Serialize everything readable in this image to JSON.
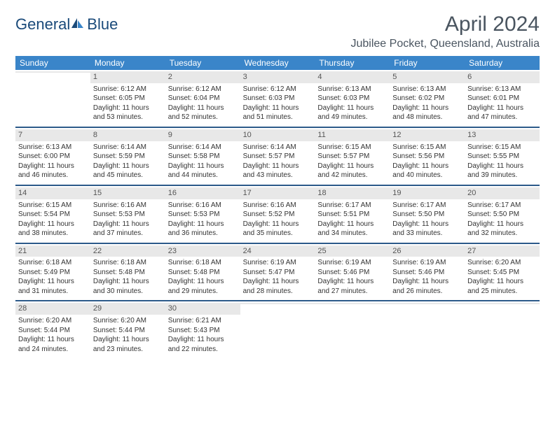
{
  "logo": {
    "text1": "General",
    "text2": "Blue"
  },
  "title": "April 2024",
  "location": "Jubilee Pocket, Queensland, Australia",
  "colors": {
    "header_bg": "#3a85c9",
    "week_divider": "#2c5a8a",
    "daynum_bg": "#e8e8e8",
    "text": "#333333",
    "title_color": "#4a5560"
  },
  "weekdays": [
    "Sunday",
    "Monday",
    "Tuesday",
    "Wednesday",
    "Thursday",
    "Friday",
    "Saturday"
  ],
  "weeks": [
    [
      {
        "num": "",
        "lines": []
      },
      {
        "num": "1",
        "lines": [
          "Sunrise: 6:12 AM",
          "Sunset: 6:05 PM",
          "Daylight: 11 hours",
          "and 53 minutes."
        ]
      },
      {
        "num": "2",
        "lines": [
          "Sunrise: 6:12 AM",
          "Sunset: 6:04 PM",
          "Daylight: 11 hours",
          "and 52 minutes."
        ]
      },
      {
        "num": "3",
        "lines": [
          "Sunrise: 6:12 AM",
          "Sunset: 6:03 PM",
          "Daylight: 11 hours",
          "and 51 minutes."
        ]
      },
      {
        "num": "4",
        "lines": [
          "Sunrise: 6:13 AM",
          "Sunset: 6:03 PM",
          "Daylight: 11 hours",
          "and 49 minutes."
        ]
      },
      {
        "num": "5",
        "lines": [
          "Sunrise: 6:13 AM",
          "Sunset: 6:02 PM",
          "Daylight: 11 hours",
          "and 48 minutes."
        ]
      },
      {
        "num": "6",
        "lines": [
          "Sunrise: 6:13 AM",
          "Sunset: 6:01 PM",
          "Daylight: 11 hours",
          "and 47 minutes."
        ]
      }
    ],
    [
      {
        "num": "7",
        "lines": [
          "Sunrise: 6:13 AM",
          "Sunset: 6:00 PM",
          "Daylight: 11 hours",
          "and 46 minutes."
        ]
      },
      {
        "num": "8",
        "lines": [
          "Sunrise: 6:14 AM",
          "Sunset: 5:59 PM",
          "Daylight: 11 hours",
          "and 45 minutes."
        ]
      },
      {
        "num": "9",
        "lines": [
          "Sunrise: 6:14 AM",
          "Sunset: 5:58 PM",
          "Daylight: 11 hours",
          "and 44 minutes."
        ]
      },
      {
        "num": "10",
        "lines": [
          "Sunrise: 6:14 AM",
          "Sunset: 5:57 PM",
          "Daylight: 11 hours",
          "and 43 minutes."
        ]
      },
      {
        "num": "11",
        "lines": [
          "Sunrise: 6:15 AM",
          "Sunset: 5:57 PM",
          "Daylight: 11 hours",
          "and 42 minutes."
        ]
      },
      {
        "num": "12",
        "lines": [
          "Sunrise: 6:15 AM",
          "Sunset: 5:56 PM",
          "Daylight: 11 hours",
          "and 40 minutes."
        ]
      },
      {
        "num": "13",
        "lines": [
          "Sunrise: 6:15 AM",
          "Sunset: 5:55 PM",
          "Daylight: 11 hours",
          "and 39 minutes."
        ]
      }
    ],
    [
      {
        "num": "14",
        "lines": [
          "Sunrise: 6:15 AM",
          "Sunset: 5:54 PM",
          "Daylight: 11 hours",
          "and 38 minutes."
        ]
      },
      {
        "num": "15",
        "lines": [
          "Sunrise: 6:16 AM",
          "Sunset: 5:53 PM",
          "Daylight: 11 hours",
          "and 37 minutes."
        ]
      },
      {
        "num": "16",
        "lines": [
          "Sunrise: 6:16 AM",
          "Sunset: 5:53 PM",
          "Daylight: 11 hours",
          "and 36 minutes."
        ]
      },
      {
        "num": "17",
        "lines": [
          "Sunrise: 6:16 AM",
          "Sunset: 5:52 PM",
          "Daylight: 11 hours",
          "and 35 minutes."
        ]
      },
      {
        "num": "18",
        "lines": [
          "Sunrise: 6:17 AM",
          "Sunset: 5:51 PM",
          "Daylight: 11 hours",
          "and 34 minutes."
        ]
      },
      {
        "num": "19",
        "lines": [
          "Sunrise: 6:17 AM",
          "Sunset: 5:50 PM",
          "Daylight: 11 hours",
          "and 33 minutes."
        ]
      },
      {
        "num": "20",
        "lines": [
          "Sunrise: 6:17 AM",
          "Sunset: 5:50 PM",
          "Daylight: 11 hours",
          "and 32 minutes."
        ]
      }
    ],
    [
      {
        "num": "21",
        "lines": [
          "Sunrise: 6:18 AM",
          "Sunset: 5:49 PM",
          "Daylight: 11 hours",
          "and 31 minutes."
        ]
      },
      {
        "num": "22",
        "lines": [
          "Sunrise: 6:18 AM",
          "Sunset: 5:48 PM",
          "Daylight: 11 hours",
          "and 30 minutes."
        ]
      },
      {
        "num": "23",
        "lines": [
          "Sunrise: 6:18 AM",
          "Sunset: 5:48 PM",
          "Daylight: 11 hours",
          "and 29 minutes."
        ]
      },
      {
        "num": "24",
        "lines": [
          "Sunrise: 6:19 AM",
          "Sunset: 5:47 PM",
          "Daylight: 11 hours",
          "and 28 minutes."
        ]
      },
      {
        "num": "25",
        "lines": [
          "Sunrise: 6:19 AM",
          "Sunset: 5:46 PM",
          "Daylight: 11 hours",
          "and 27 minutes."
        ]
      },
      {
        "num": "26",
        "lines": [
          "Sunrise: 6:19 AM",
          "Sunset: 5:46 PM",
          "Daylight: 11 hours",
          "and 26 minutes."
        ]
      },
      {
        "num": "27",
        "lines": [
          "Sunrise: 6:20 AM",
          "Sunset: 5:45 PM",
          "Daylight: 11 hours",
          "and 25 minutes."
        ]
      }
    ],
    [
      {
        "num": "28",
        "lines": [
          "Sunrise: 6:20 AM",
          "Sunset: 5:44 PM",
          "Daylight: 11 hours",
          "and 24 minutes."
        ]
      },
      {
        "num": "29",
        "lines": [
          "Sunrise: 6:20 AM",
          "Sunset: 5:44 PM",
          "Daylight: 11 hours",
          "and 23 minutes."
        ]
      },
      {
        "num": "30",
        "lines": [
          "Sunrise: 6:21 AM",
          "Sunset: 5:43 PM",
          "Daylight: 11 hours",
          "and 22 minutes."
        ]
      },
      {
        "num": "",
        "lines": []
      },
      {
        "num": "",
        "lines": []
      },
      {
        "num": "",
        "lines": []
      },
      {
        "num": "",
        "lines": []
      }
    ]
  ]
}
